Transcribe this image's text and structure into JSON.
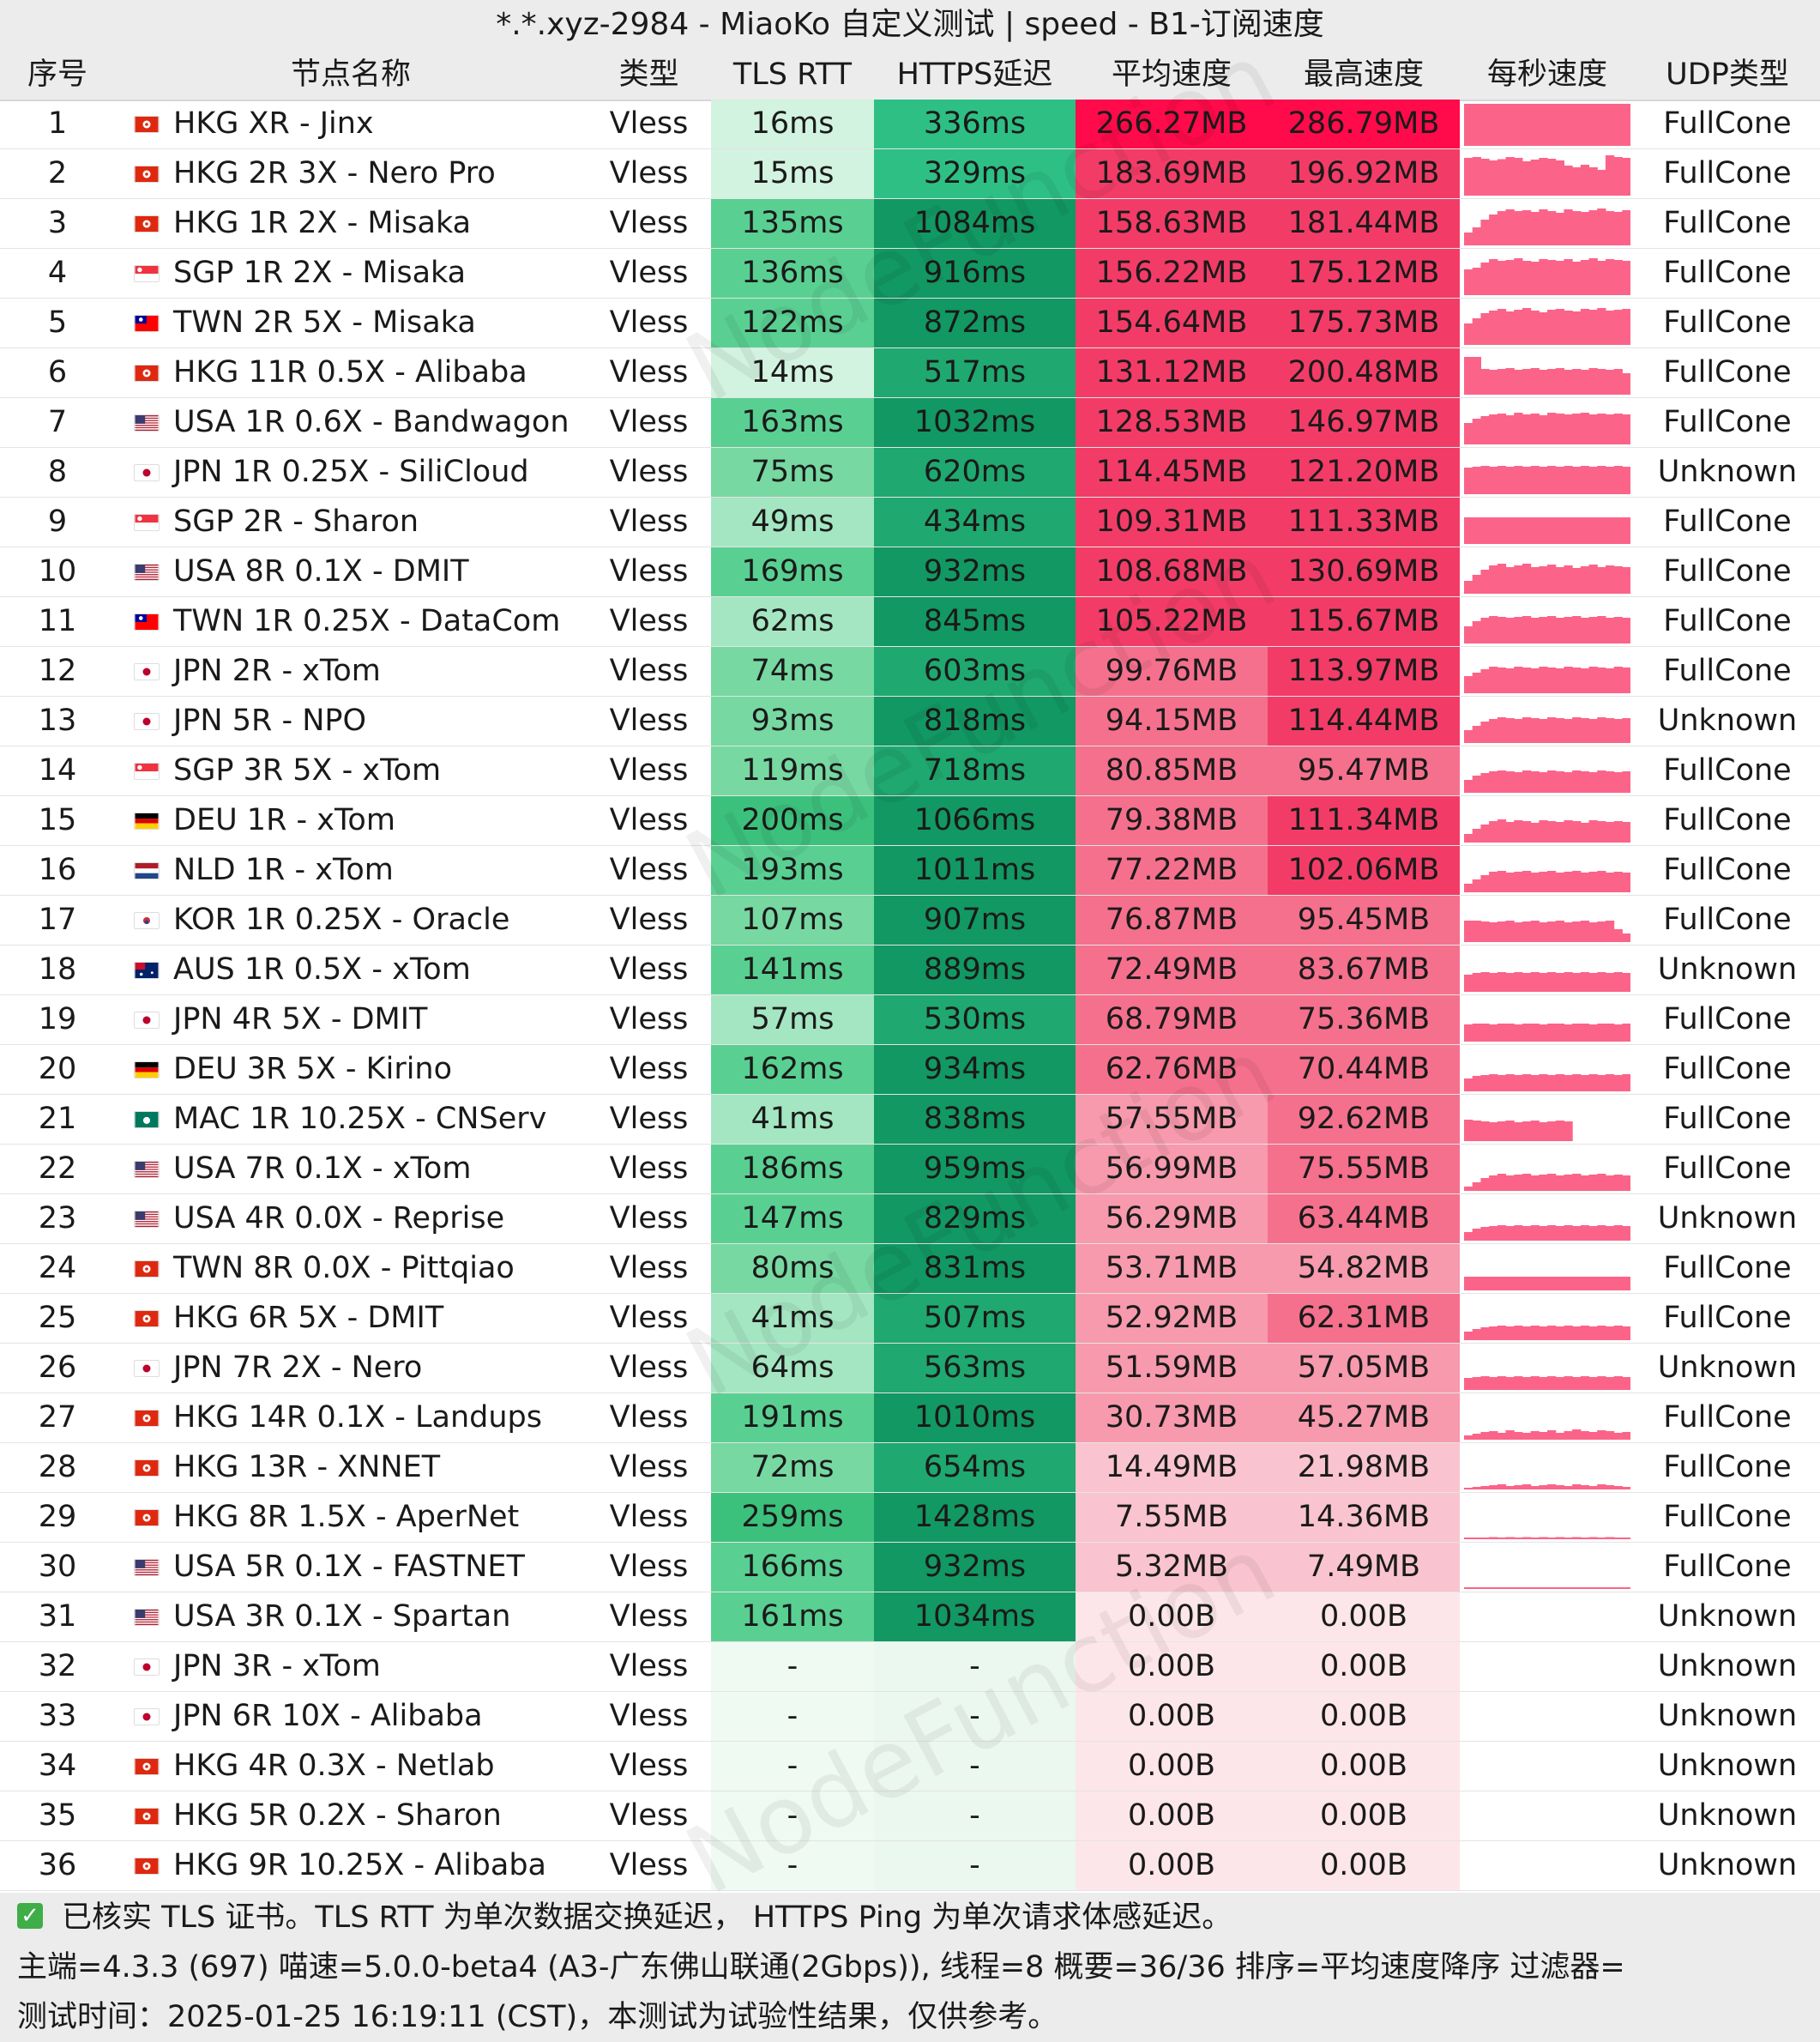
{
  "title": "*.*.xyz-2984 - MiaoKo 自定义测试 | speed - B1-订阅速度",
  "headers": [
    "序号",
    "节点名称",
    "类型",
    "TLS RTT",
    "HTTPS延迟",
    "平均速度",
    "最高速度",
    "每秒速度",
    "UDP类型"
  ],
  "colors": {
    "header_bg": "#ececec",
    "tls_scale": [
      "#eefaf2",
      "#d2f3df",
      "#a4e6c2",
      "#77d8a2",
      "#59d092",
      "#3cc17d"
    ],
    "https_scale": [
      "#ebf8f0",
      "#2ebf85",
      "#1fa86f",
      "#129862"
    ],
    "speed_scale": [
      "#fde6ea",
      "#f9c4cf",
      "#f79aad",
      "#f5708d",
      "#f23c67",
      "#ff0a4a"
    ],
    "spark_color": "#fb6488"
  },
  "rows": [
    {
      "no": "1",
      "flag": "hk",
      "name": "HKG XR - Jinx",
      "type": "Vless",
      "tls": "16ms",
      "https": "336ms",
      "avg": "266.27MB",
      "max": "286.79MB",
      "udp": "FullCone",
      "spark": [
        0.98,
        0.98,
        0.98,
        0.98,
        0.98,
        0.98,
        0.98,
        0.98,
        0.98,
        0.98,
        0.98,
        0.98,
        0.98,
        0.98,
        0.98,
        0.98,
        0.98,
        0.98,
        0.98,
        0.98
      ]
    },
    {
      "no": "2",
      "flag": "hk",
      "name": "HKG 2R 3X - Nero Pro",
      "type": "Vless",
      "tls": "15ms",
      "https": "329ms",
      "avg": "183.69MB",
      "max": "196.92MB",
      "udp": "FullCone",
      "spark": [
        0.88,
        0.9,
        0.86,
        0.82,
        0.85,
        0.9,
        0.88,
        0.8,
        0.84,
        0.88,
        0.86,
        0.82,
        0.7,
        0.66,
        0.72,
        0.66,
        0.6,
        0.94,
        0.9,
        0.88
      ]
    },
    {
      "no": "3",
      "flag": "hk",
      "name": "HKG 1R 2X - Misaka",
      "type": "Vless",
      "tls": "135ms",
      "https": "1084ms",
      "avg": "158.63MB",
      "max": "181.44MB",
      "udp": "FullCone",
      "spark": [
        0.3,
        0.42,
        0.6,
        0.72,
        0.8,
        0.84,
        0.8,
        0.82,
        0.78,
        0.84,
        0.8,
        0.76,
        0.84,
        0.8,
        0.78,
        0.82,
        0.86,
        0.8,
        0.78,
        0.82
      ]
    },
    {
      "no": "4",
      "flag": "sg",
      "name": "SGP 1R 2X - Misaka",
      "type": "Vless",
      "tls": "136ms",
      "https": "916ms",
      "avg": "156.22MB",
      "max": "175.12MB",
      "udp": "FullCone",
      "spark": [
        0.6,
        0.64,
        0.76,
        0.84,
        0.8,
        0.82,
        0.86,
        0.8,
        0.78,
        0.84,
        0.82,
        0.8,
        0.84,
        0.78,
        0.82,
        0.86,
        0.8,
        0.84,
        0.82,
        0.8
      ]
    },
    {
      "no": "5",
      "flag": "tw",
      "name": "TWN 2R 5X - Misaka",
      "type": "Vless",
      "tls": "122ms",
      "https": "872ms",
      "avg": "154.64MB",
      "max": "175.73MB",
      "udp": "FullCone",
      "spark": [
        0.5,
        0.62,
        0.74,
        0.8,
        0.84,
        0.78,
        0.82,
        0.86,
        0.8,
        0.76,
        0.82,
        0.84,
        0.8,
        0.78,
        0.84,
        0.82,
        0.86,
        0.8,
        0.82,
        0.84
      ]
    },
    {
      "no": "6",
      "flag": "hk",
      "name": "HKG 11R 0.5X - Alibaba",
      "type": "Vless",
      "tls": "14ms",
      "https": "517ms",
      "avg": "131.12MB",
      "max": "200.48MB",
      "udp": "FullCone",
      "spark": [
        0.88,
        0.88,
        0.6,
        0.58,
        0.6,
        0.62,
        0.58,
        0.6,
        0.62,
        0.58,
        0.6,
        0.62,
        0.58,
        0.6,
        0.58,
        0.62,
        0.6,
        0.58,
        0.6,
        0.5
      ]
    },
    {
      "no": "7",
      "flag": "us",
      "name": "USA 1R 0.6X - Bandwagon",
      "type": "Vless",
      "tls": "163ms",
      "https": "1032ms",
      "avg": "128.53MB",
      "max": "146.97MB",
      "udp": "FullCone",
      "spark": [
        0.5,
        0.6,
        0.66,
        0.7,
        0.72,
        0.68,
        0.74,
        0.7,
        0.72,
        0.68,
        0.74,
        0.72,
        0.7,
        0.72,
        0.74,
        0.7,
        0.72,
        0.7,
        0.72,
        0.7
      ]
    },
    {
      "no": "8",
      "flag": "jp",
      "name": "JPN 1R 0.25X - SiliCloud",
      "type": "Vless",
      "tls": "75ms",
      "https": "620ms",
      "avg": "114.45MB",
      "max": "121.20MB",
      "udp": "Unknown",
      "spark": [
        0.62,
        0.64,
        0.66,
        0.64,
        0.66,
        0.64,
        0.66,
        0.64,
        0.66,
        0.64,
        0.66,
        0.64,
        0.66,
        0.64,
        0.66,
        0.64,
        0.66,
        0.64,
        0.66,
        0.64
      ]
    },
    {
      "no": "9",
      "flag": "sg",
      "name": "SGP 2R - Sharon",
      "type": "Vless",
      "tls": "49ms",
      "https": "434ms",
      "avg": "109.31MB",
      "max": "111.33MB",
      "udp": "FullCone",
      "spark": [
        0.62,
        0.62,
        0.62,
        0.62,
        0.62,
        0.62,
        0.62,
        0.62,
        0.62,
        0.62,
        0.62,
        0.62,
        0.62,
        0.62,
        0.62,
        0.62,
        0.62,
        0.62,
        0.62,
        0.62
      ]
    },
    {
      "no": "10",
      "flag": "us",
      "name": "USA 8R 0.1X - DMIT",
      "type": "Vless",
      "tls": "169ms",
      "https": "932ms",
      "avg": "108.68MB",
      "max": "130.69MB",
      "udp": "FullCone",
      "spark": [
        0.3,
        0.44,
        0.56,
        0.66,
        0.7,
        0.62,
        0.66,
        0.7,
        0.62,
        0.64,
        0.68,
        0.62,
        0.66,
        0.6,
        0.64,
        0.68,
        0.62,
        0.66,
        0.64,
        0.62
      ]
    },
    {
      "no": "11",
      "flag": "tw",
      "name": "TWN 1R 0.25X - DataCom",
      "type": "Vless",
      "tls": "62ms",
      "https": "845ms",
      "avg": "105.22MB",
      "max": "115.67MB",
      "udp": "FullCone",
      "spark": [
        0.4,
        0.52,
        0.6,
        0.64,
        0.62,
        0.6,
        0.62,
        0.64,
        0.6,
        0.62,
        0.64,
        0.6,
        0.62,
        0.64,
        0.6,
        0.62,
        0.64,
        0.6,
        0.62,
        0.6
      ]
    },
    {
      "no": "12",
      "flag": "jp",
      "name": "JPN 2R - xTom",
      "type": "Vless",
      "tls": "74ms",
      "https": "603ms",
      "avg": "99.76MB",
      "max": "113.97MB",
      "udp": "FullCone",
      "spark": [
        0.4,
        0.48,
        0.56,
        0.62,
        0.6,
        0.58,
        0.62,
        0.6,
        0.58,
        0.62,
        0.6,
        0.58,
        0.62,
        0.6,
        0.58,
        0.62,
        0.6,
        0.58,
        0.62,
        0.6
      ]
    },
    {
      "no": "13",
      "flag": "jp",
      "name": "JPN 5R - NPO",
      "type": "Vless",
      "tls": "93ms",
      "https": "818ms",
      "avg": "94.15MB",
      "max": "114.44MB",
      "udp": "Unknown",
      "spark": [
        0.3,
        0.4,
        0.5,
        0.56,
        0.6,
        0.58,
        0.56,
        0.6,
        0.58,
        0.56,
        0.6,
        0.58,
        0.56,
        0.6,
        0.58,
        0.56,
        0.6,
        0.58,
        0.56,
        0.58
      ]
    },
    {
      "no": "14",
      "flag": "sg",
      "name": "SGP 3R 5X - xTom",
      "type": "Vless",
      "tls": "119ms",
      "https": "718ms",
      "avg": "80.85MB",
      "max": "95.47MB",
      "udp": "FullCone",
      "spark": [
        0.3,
        0.4,
        0.46,
        0.5,
        0.52,
        0.5,
        0.48,
        0.52,
        0.5,
        0.48,
        0.52,
        0.5,
        0.48,
        0.52,
        0.5,
        0.48,
        0.52,
        0.5,
        0.48,
        0.5
      ]
    },
    {
      "no": "15",
      "flag": "de",
      "name": "DEU 1R - xTom",
      "type": "Vless",
      "tls": "200ms",
      "https": "1066ms",
      "avg": "79.38MB",
      "max": "111.34MB",
      "udp": "FullCone",
      "spark": [
        0.2,
        0.32,
        0.42,
        0.5,
        0.54,
        0.48,
        0.52,
        0.5,
        0.46,
        0.52,
        0.5,
        0.48,
        0.52,
        0.5,
        0.46,
        0.52,
        0.5,
        0.48,
        0.5,
        0.48
      ]
    },
    {
      "no": "16",
      "flag": "nl",
      "name": "NLD 1R - xTom",
      "type": "Vless",
      "tls": "193ms",
      "https": "1011ms",
      "avg": "77.22MB",
      "max": "102.06MB",
      "udp": "FullCone",
      "spark": [
        0.2,
        0.3,
        0.4,
        0.48,
        0.5,
        0.46,
        0.48,
        0.5,
        0.46,
        0.48,
        0.5,
        0.46,
        0.48,
        0.5,
        0.46,
        0.48,
        0.5,
        0.46,
        0.48,
        0.46
      ]
    },
    {
      "no": "17",
      "flag": "kr",
      "name": "KOR 1R 0.25X - Oracle",
      "type": "Vless",
      "tls": "107ms",
      "https": "907ms",
      "avg": "76.87MB",
      "max": "95.45MB",
      "udp": "FullCone",
      "spark": [
        0.5,
        0.5,
        0.48,
        0.46,
        0.48,
        0.5,
        0.46,
        0.48,
        0.5,
        0.46,
        0.48,
        0.5,
        0.46,
        0.48,
        0.5,
        0.46,
        0.48,
        0.5,
        0.3,
        0.2
      ]
    },
    {
      "no": "18",
      "flag": "au",
      "name": "AUS 1R 0.5X - xTom",
      "type": "Vless",
      "tls": "141ms",
      "https": "889ms",
      "avg": "72.49MB",
      "max": "83.67MB",
      "udp": "Unknown",
      "spark": [
        0.4,
        0.44,
        0.46,
        0.44,
        0.46,
        0.44,
        0.46,
        0.44,
        0.46,
        0.44,
        0.46,
        0.44,
        0.46,
        0.44,
        0.46,
        0.44,
        0.46,
        0.44,
        0.46,
        0.44
      ]
    },
    {
      "no": "19",
      "flag": "jp",
      "name": "JPN 4R 5X - DMIT",
      "type": "Vless",
      "tls": "57ms",
      "https": "530ms",
      "avg": "68.79MB",
      "max": "75.36MB",
      "udp": "FullCone",
      "spark": [
        0.4,
        0.42,
        0.42,
        0.4,
        0.42,
        0.42,
        0.4,
        0.42,
        0.42,
        0.4,
        0.42,
        0.42,
        0.4,
        0.42,
        0.42,
        0.4,
        0.42,
        0.42,
        0.4,
        0.42
      ]
    },
    {
      "no": "20",
      "flag": "de",
      "name": "DEU 3R 5X - Kirino",
      "type": "Vless",
      "tls": "162ms",
      "https": "934ms",
      "avg": "62.76MB",
      "max": "70.44MB",
      "udp": "FullCone",
      "spark": [
        0.3,
        0.36,
        0.38,
        0.4,
        0.38,
        0.4,
        0.38,
        0.4,
        0.38,
        0.4,
        0.38,
        0.4,
        0.38,
        0.4,
        0.38,
        0.4,
        0.38,
        0.4,
        0.38,
        0.4
      ]
    },
    {
      "no": "21",
      "flag": "mo",
      "name": "MAC 1R 10.25X - CNServ",
      "type": "Vless",
      "tls": "41ms",
      "https": "838ms",
      "avg": "57.55MB",
      "max": "92.62MB",
      "udp": "FullCone",
      "spark": [
        0.5,
        0.48,
        0.46,
        0.44,
        0.46,
        0.48,
        0.44,
        0.46,
        0.48,
        0.44,
        0.46,
        0.48,
        0.46,
        0.0,
        0.0,
        0.0,
        0.0,
        0.0,
        0.0,
        0.0
      ]
    },
    {
      "no": "22",
      "flag": "us",
      "name": "USA 7R 0.1X - xTom",
      "type": "Vless",
      "tls": "186ms",
      "https": "959ms",
      "avg": "56.99MB",
      "max": "75.55MB",
      "udp": "FullCone",
      "spark": [
        0.1,
        0.2,
        0.3,
        0.36,
        0.4,
        0.36,
        0.38,
        0.4,
        0.36,
        0.38,
        0.4,
        0.36,
        0.38,
        0.4,
        0.36,
        0.38,
        0.4,
        0.36,
        0.38,
        0.36
      ]
    },
    {
      "no": "23",
      "flag": "us",
      "name": "USA 4R 0.0X - Reprise",
      "type": "Vless",
      "tls": "147ms",
      "https": "829ms",
      "avg": "56.29MB",
      "max": "63.44MB",
      "udp": "Unknown",
      "spark": [
        0.2,
        0.28,
        0.32,
        0.34,
        0.36,
        0.34,
        0.36,
        0.34,
        0.36,
        0.34,
        0.36,
        0.34,
        0.36,
        0.34,
        0.36,
        0.34,
        0.36,
        0.34,
        0.36,
        0.34
      ]
    },
    {
      "no": "24",
      "flag": "hk",
      "name": "TWN 8R 0.0X - Pittqiao",
      "type": "Vless",
      "tls": "80ms",
      "https": "831ms",
      "avg": "53.71MB",
      "max": "54.82MB",
      "udp": "FullCone",
      "spark": [
        0.32,
        0.32,
        0.32,
        0.32,
        0.32,
        0.32,
        0.32,
        0.32,
        0.32,
        0.32,
        0.32,
        0.32,
        0.32,
        0.32,
        0.32,
        0.32,
        0.32,
        0.32,
        0.32,
        0.32
      ]
    },
    {
      "no": "25",
      "flag": "hk",
      "name": "HKG 6R 5X - DMIT",
      "type": "Vless",
      "tls": "41ms",
      "https": "507ms",
      "avg": "52.92MB",
      "max": "62.31MB",
      "udp": "FullCone",
      "spark": [
        0.2,
        0.26,
        0.3,
        0.32,
        0.34,
        0.32,
        0.34,
        0.32,
        0.34,
        0.32,
        0.34,
        0.32,
        0.34,
        0.32,
        0.34,
        0.32,
        0.34,
        0.32,
        0.34,
        0.32
      ]
    },
    {
      "no": "26",
      "flag": "jp",
      "name": "JPN 7R 2X - Nero",
      "type": "Vless",
      "tls": "64ms",
      "https": "563ms",
      "avg": "51.59MB",
      "max": "57.05MB",
      "udp": "Unknown",
      "spark": [
        0.28,
        0.3,
        0.32,
        0.3,
        0.32,
        0.3,
        0.32,
        0.3,
        0.32,
        0.3,
        0.32,
        0.3,
        0.32,
        0.3,
        0.32,
        0.3,
        0.32,
        0.3,
        0.32,
        0.3
      ]
    },
    {
      "no": "27",
      "flag": "hk",
      "name": "HKG 14R 0.1X - Landups",
      "type": "Vless",
      "tls": "191ms",
      "https": "1010ms",
      "avg": "30.73MB",
      "max": "45.27MB",
      "udp": "FullCone",
      "spark": [
        0.1,
        0.14,
        0.18,
        0.2,
        0.16,
        0.22,
        0.18,
        0.16,
        0.2,
        0.18,
        0.22,
        0.16,
        0.2,
        0.24,
        0.2,
        0.18,
        0.22,
        0.2,
        0.16,
        0.18
      ]
    },
    {
      "no": "28",
      "flag": "hk",
      "name": "HKG 13R - XNNET",
      "type": "Vless",
      "tls": "72ms",
      "https": "654ms",
      "avg": "14.49MB",
      "max": "21.98MB",
      "udp": "FullCone",
      "spark": [
        0.04,
        0.06,
        0.08,
        0.1,
        0.12,
        0.08,
        0.1,
        0.12,
        0.08,
        0.1,
        0.12,
        0.1,
        0.08,
        0.12,
        0.1,
        0.08,
        0.12,
        0.1,
        0.08,
        0.06
      ]
    },
    {
      "no": "29",
      "flag": "hk",
      "name": "HKG 8R 1.5X - AperNet",
      "type": "Vless",
      "tls": "259ms",
      "https": "1428ms",
      "avg": "7.55MB",
      "max": "14.36MB",
      "udp": "FullCone",
      "spark": [
        0.02,
        0.03,
        0.04,
        0.05,
        0.04,
        0.05,
        0.04,
        0.05,
        0.04,
        0.05,
        0.04,
        0.05,
        0.04,
        0.05,
        0.04,
        0.05,
        0.04,
        0.05,
        0.04,
        0.03
      ]
    },
    {
      "no": "30",
      "flag": "us",
      "name": "USA 5R 0.1X - FASTNET",
      "type": "Vless",
      "tls": "166ms",
      "https": "932ms",
      "avg": "5.32MB",
      "max": "7.49MB",
      "udp": "FullCone",
      "spark": [
        0.02,
        0.02,
        0.03,
        0.03,
        0.03,
        0.03,
        0.03,
        0.03,
        0.03,
        0.03,
        0.03,
        0.03,
        0.03,
        0.03,
        0.03,
        0.03,
        0.03,
        0.03,
        0.03,
        0.02
      ]
    },
    {
      "no": "31",
      "flag": "us",
      "name": "USA 3R 0.1X - Spartan",
      "type": "Vless",
      "tls": "161ms",
      "https": "1034ms",
      "avg": "0.00B",
      "max": "0.00B",
      "udp": "Unknown",
      "spark": []
    },
    {
      "no": "32",
      "flag": "jp",
      "name": "JPN 3R - xTom",
      "type": "Vless",
      "tls": "-",
      "https": "-",
      "avg": "0.00B",
      "max": "0.00B",
      "udp": "Unknown",
      "spark": []
    },
    {
      "no": "33",
      "flag": "jp",
      "name": "JPN 6R 10X - Alibaba",
      "type": "Vless",
      "tls": "-",
      "https": "-",
      "avg": "0.00B",
      "max": "0.00B",
      "udp": "Unknown",
      "spark": []
    },
    {
      "no": "34",
      "flag": "hk",
      "name": "HKG 4R 0.3X - Netlab",
      "type": "Vless",
      "tls": "-",
      "https": "-",
      "avg": "0.00B",
      "max": "0.00B",
      "udp": "Unknown",
      "spark": []
    },
    {
      "no": "35",
      "flag": "hk",
      "name": "HKG 5R 0.2X - Sharon",
      "type": "Vless",
      "tls": "-",
      "https": "-",
      "avg": "0.00B",
      "max": "0.00B",
      "udp": "Unknown",
      "spark": []
    },
    {
      "no": "36",
      "flag": "hk",
      "name": "HKG 9R 10.25X - Alibaba",
      "type": "Vless",
      "tls": "-",
      "https": "-",
      "avg": "0.00B",
      "max": "0.00B",
      "udp": "Unknown",
      "spark": []
    }
  ],
  "footer": {
    "check_mark": "✓",
    "line1": "已核实 TLS 证书。TLS RTT 为单次数据交换延迟，  HTTPS Ping 为单次请求体感延迟。",
    "line2": "主端=4.3.3 (697) 喵速=5.0.0-beta4 (A3-广东佛山联通(2Gbps)), 线程=8 概要=36/36 排序=平均速度降序 过滤器=",
    "line3": "测试时间：2025-01-25 16:19:11 (CST)，本测试为试验性结果，仅供参考。"
  },
  "watermark": "NodeFunction"
}
